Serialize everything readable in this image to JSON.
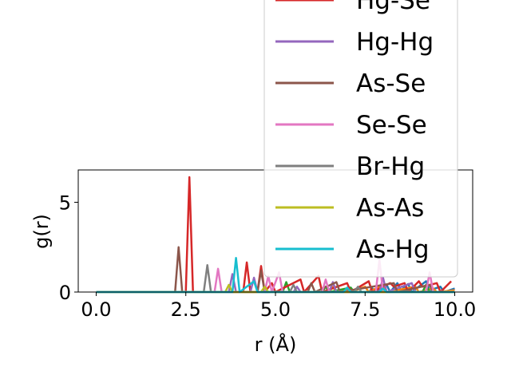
{
  "chart_data": {
    "type": "line",
    "xlabel": "r (Å)",
    "ylabel": "g(r)",
    "xlim": [
      -0.5,
      10.5
    ],
    "ylim": [
      0,
      6.8
    ],
    "xticks": [
      0.0,
      2.5,
      5.0,
      7.5,
      10.0
    ],
    "xtick_labels": [
      "0.0",
      "2.5",
      "5.0",
      "7.5",
      "10.0"
    ],
    "yticks": [
      0,
      5
    ],
    "ytick_labels": [
      "0",
      "5"
    ],
    "grid": false,
    "legend_placement": "top-right",
    "series": [
      {
        "name": "",
        "color": "#1f77b4",
        "points": [
          [
            0,
            0
          ],
          [
            7.6,
            0
          ],
          [
            7.7,
            0.2
          ],
          [
            7.8,
            0
          ],
          [
            8.1,
            0.4
          ],
          [
            8.2,
            0
          ],
          [
            8.4,
            0.5
          ],
          [
            8.5,
            0.1
          ],
          [
            8.7,
            0.45
          ],
          [
            8.8,
            0
          ],
          [
            9.2,
            0.6
          ],
          [
            9.3,
            0.1
          ],
          [
            9.6,
            0.3
          ],
          [
            9.7,
            0
          ],
          [
            10,
            0.2
          ]
        ]
      },
      {
        "name": "",
        "color": "#ff7f0e",
        "points": [
          [
            0,
            0
          ],
          [
            6.5,
            0
          ],
          [
            6.6,
            0.3
          ],
          [
            6.7,
            0
          ],
          [
            7.0,
            0.2
          ],
          [
            7.1,
            0
          ],
          [
            7.5,
            0.3
          ],
          [
            7.6,
            0
          ],
          [
            8.0,
            0.4
          ],
          [
            8.1,
            0
          ],
          [
            8.9,
            0.3
          ],
          [
            9.0,
            0
          ],
          [
            9.4,
            0.2
          ],
          [
            9.5,
            0
          ],
          [
            10,
            0.1
          ]
        ]
      },
      {
        "name": "",
        "color": "#2ca02c",
        "points": [
          [
            0,
            0
          ],
          [
            5.2,
            0
          ],
          [
            5.3,
            0.55
          ],
          [
            5.4,
            0
          ],
          [
            6.3,
            0
          ],
          [
            6.4,
            0.3
          ],
          [
            6.5,
            0
          ],
          [
            7.1,
            0.25
          ],
          [
            7.2,
            0
          ],
          [
            9.1,
            0
          ],
          [
            9.2,
            0.4
          ],
          [
            9.3,
            0
          ],
          [
            10,
            0
          ]
        ]
      },
      {
        "name": "Hg-Se",
        "color": "#d62728",
        "points": [
          [
            0,
            0
          ],
          [
            2.5,
            0
          ],
          [
            2.6,
            6.4
          ],
          [
            2.7,
            0
          ],
          [
            4.1,
            0
          ],
          [
            4.2,
            1.65
          ],
          [
            4.3,
            0
          ],
          [
            4.5,
            0
          ],
          [
            4.6,
            1.45
          ],
          [
            4.7,
            0
          ],
          [
            4.9,
            0.5
          ],
          [
            5.0,
            0
          ],
          [
            5.7,
            0.7
          ],
          [
            5.8,
            0
          ],
          [
            6.2,
            0.9
          ],
          [
            6.3,
            0
          ],
          [
            7.0,
            0.5
          ],
          [
            7.1,
            0
          ],
          [
            7.6,
            0.6
          ],
          [
            7.7,
            0
          ],
          [
            8.2,
            0.5
          ],
          [
            8.3,
            0.3
          ],
          [
            8.6,
            0.5
          ],
          [
            8.7,
            0
          ],
          [
            9.0,
            0.6
          ],
          [
            9.1,
            0.3
          ],
          [
            9.5,
            0.5
          ],
          [
            9.6,
            0
          ],
          [
            9.9,
            0.6
          ]
        ]
      },
      {
        "name": "Hg-Hg",
        "color": "#9467bd",
        "points": [
          [
            0,
            0
          ],
          [
            3.7,
            0
          ],
          [
            3.8,
            1.0
          ],
          [
            3.9,
            0
          ],
          [
            4.3,
            0
          ],
          [
            4.4,
            0.8
          ],
          [
            4.5,
            0
          ],
          [
            5.5,
            0
          ],
          [
            5.6,
            0.3
          ],
          [
            5.7,
            0
          ],
          [
            6.5,
            0
          ],
          [
            6.6,
            0.55
          ],
          [
            6.7,
            0
          ],
          [
            7.9,
            0
          ],
          [
            8.0,
            0.8
          ],
          [
            8.1,
            0
          ],
          [
            8.8,
            0.5
          ],
          [
            8.9,
            0
          ],
          [
            10,
            0
          ]
        ]
      },
      {
        "name": "As-Se",
        "color": "#8c564b",
        "points": [
          [
            0,
            0
          ],
          [
            2.2,
            0
          ],
          [
            2.3,
            2.5
          ],
          [
            2.4,
            0
          ],
          [
            4.5,
            0
          ],
          [
            4.6,
            1.2
          ],
          [
            4.7,
            0
          ],
          [
            5.9,
            0
          ],
          [
            6.0,
            0.5
          ],
          [
            6.1,
            0
          ],
          [
            6.7,
            0.55
          ],
          [
            6.8,
            0
          ],
          [
            8.3,
            0.5
          ],
          [
            8.4,
            0
          ],
          [
            9.3,
            0.4
          ],
          [
            9.4,
            0
          ],
          [
            10,
            0
          ]
        ]
      },
      {
        "name": "Se-Se",
        "color": "#e377c2",
        "points": [
          [
            0,
            0
          ],
          [
            3.3,
            0
          ],
          [
            3.4,
            1.3
          ],
          [
            3.5,
            0
          ],
          [
            4.7,
            0
          ],
          [
            4.8,
            0.9
          ],
          [
            4.9,
            0
          ],
          [
            5.1,
            1.1
          ],
          [
            5.2,
            0
          ],
          [
            6.3,
            0
          ],
          [
            6.4,
            0.7
          ],
          [
            6.5,
            0
          ],
          [
            7.8,
            0
          ],
          [
            7.9,
            1.8
          ],
          [
            8.0,
            0
          ],
          [
            9.2,
            0
          ],
          [
            9.3,
            1.1
          ],
          [
            9.4,
            0
          ],
          [
            10,
            0
          ]
        ]
      },
      {
        "name": "Br-Hg",
        "color": "#7f7f7f",
        "points": [
          [
            0,
            0
          ],
          [
            3.0,
            0
          ],
          [
            3.1,
            1.5
          ],
          [
            3.2,
            0
          ],
          [
            5.4,
            0
          ],
          [
            5.5,
            0.4
          ],
          [
            5.6,
            0
          ],
          [
            7.2,
            0
          ],
          [
            7.3,
            0.3
          ],
          [
            7.4,
            0
          ],
          [
            10,
            0
          ]
        ]
      },
      {
        "name": "As-As",
        "color": "#bcbd22",
        "points": [
          [
            0,
            0
          ],
          [
            3.6,
            0
          ],
          [
            3.7,
            0.4
          ],
          [
            3.8,
            0
          ],
          [
            4.6,
            0
          ],
          [
            4.7,
            0.3
          ],
          [
            4.8,
            0
          ],
          [
            10,
            0
          ]
        ]
      },
      {
        "name": "As-Hg",
        "color": "#17becf",
        "points": [
          [
            0,
            0
          ],
          [
            3.8,
            0
          ],
          [
            3.9,
            1.9
          ],
          [
            4.0,
            0
          ],
          [
            4.4,
            0.6
          ],
          [
            4.5,
            0
          ],
          [
            6.9,
            0
          ],
          [
            7.0,
            0.25
          ],
          [
            7.1,
            0
          ],
          [
            7.9,
            0
          ],
          [
            8.0,
            0.2
          ],
          [
            8.1,
            0
          ],
          [
            10,
            0
          ]
        ]
      }
    ]
  }
}
